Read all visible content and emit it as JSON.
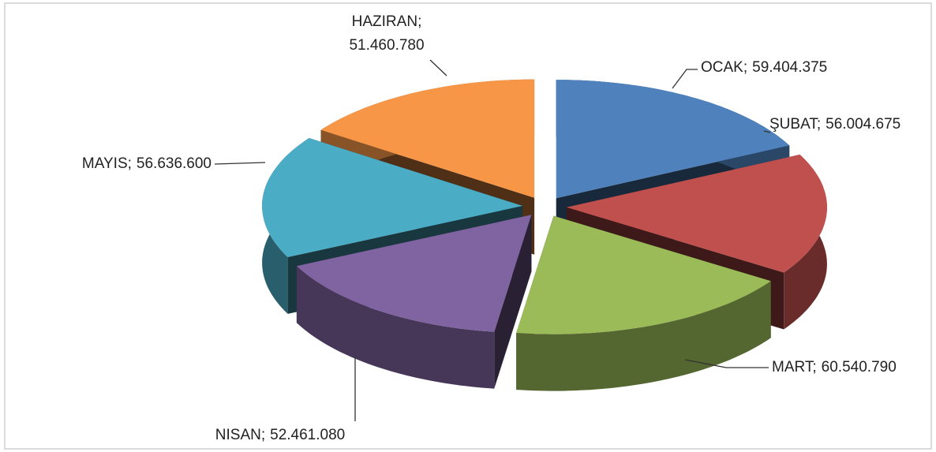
{
  "chart_data": {
    "type": "pie3d",
    "categories": [
      "OCAK",
      "ŞUBAT",
      "MART",
      "NISAN",
      "MAYIS",
      "HAZIRAN"
    ],
    "values": [
      59404375,
      56004675,
      60540790,
      52461080,
      56636600,
      51460780
    ],
    "value_labels": [
      "59.404.375",
      "56.004.675",
      "60.540.790",
      "52.461.080",
      "56.636.600",
      "51.460.780"
    ],
    "label_separator": ";",
    "colors": [
      "#4f81bd",
      "#c0504d",
      "#9bbb59",
      "#8064a2",
      "#4bacc6",
      "#f79646"
    ]
  }
}
